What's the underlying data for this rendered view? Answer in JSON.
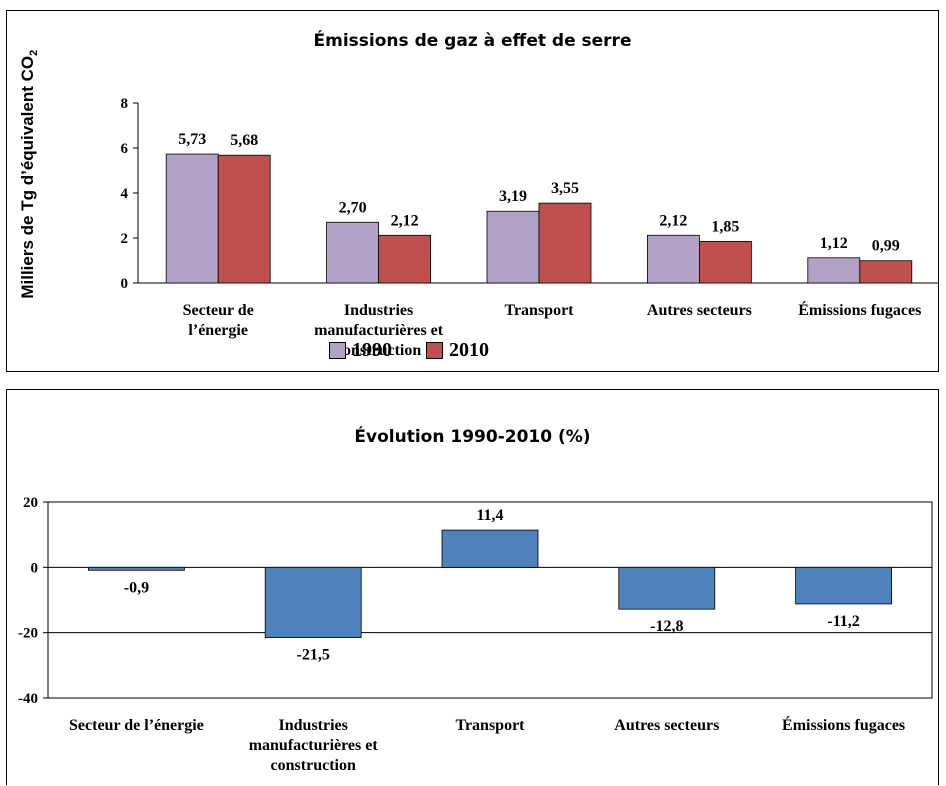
{
  "chart_data": [
    {
      "type": "bar",
      "title": "Émissions de gaz à effet de serre",
      "ylabel": "Milliers de Tg d’équivalent CO",
      "ylabel_subscript": "2",
      "xlabel": "",
      "categories": [
        "Secteur de l’énergie",
        "Industries manufacturières et construction",
        "Transport",
        "Autres secteurs",
        "Émissions fugaces"
      ],
      "category_lines": [
        [
          "Secteur de",
          "l’énergie"
        ],
        [
          "Industries",
          "manufacturières et",
          "construction"
        ],
        [
          "Transport"
        ],
        [
          "Autres secteurs"
        ],
        [
          "Émissions fugaces"
        ]
      ],
      "series": [
        {
          "name": "1990",
          "color": "#b3a2c7",
          "values": [
            5.73,
            2.7,
            3.19,
            2.12,
            1.12
          ],
          "labels": [
            "5,73",
            "2,70",
            "3,19",
            "2,12",
            "1,12"
          ]
        },
        {
          "name": "2010",
          "color": "#c0504d",
          "values": [
            5.68,
            2.12,
            3.55,
            1.85,
            0.99
          ],
          "labels": [
            "5,68",
            "2,12",
            "3,55",
            "1,85",
            "0,99"
          ]
        }
      ],
      "ylim": [
        0,
        8
      ],
      "yticks": [
        0,
        2,
        4,
        6,
        8
      ],
      "grid": false,
      "legend": "bottom-center"
    },
    {
      "type": "bar",
      "title": "Évolution 1990-2010 (%)",
      "xlabel": "",
      "ylabel": "",
      "categories": [
        "Secteur de l’énergie",
        "Industries manufacturières et construction",
        "Transport",
        "Autres secteurs",
        "Émissions fugaces"
      ],
      "category_lines": [
        [
          "Secteur de l’énergie"
        ],
        [
          "Industries",
          "manufacturières et",
          "construction"
        ],
        [
          "Transport"
        ],
        [
          "Autres secteurs"
        ],
        [
          "Émissions fugaces"
        ]
      ],
      "series": [
        {
          "color": "#4f81bd",
          "values": [
            -0.9,
            -21.5,
            11.4,
            -12.8,
            -11.2
          ],
          "labels": [
            "-0,9",
            "-21,5",
            "11,4",
            "-12,8",
            "-11,2"
          ]
        }
      ],
      "ylim": [
        -40,
        20
      ],
      "yticks": [
        -40,
        -20,
        0,
        20
      ],
      "grid": true,
      "legend": "none"
    }
  ]
}
